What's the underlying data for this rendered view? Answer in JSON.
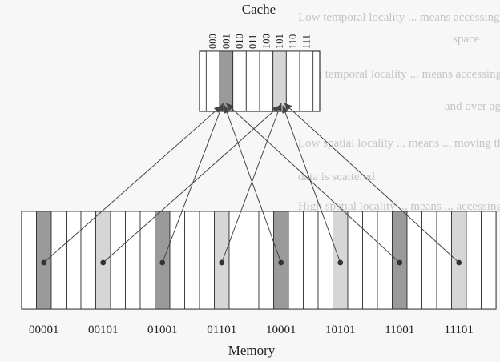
{
  "cache": {
    "title": "Cache",
    "indices": [
      "000",
      "001",
      "010",
      "011",
      "100",
      "101",
      "110",
      "111"
    ],
    "line_shades": [
      "white",
      "dark",
      "white",
      "white",
      "white",
      "light",
      "white",
      "white"
    ]
  },
  "memory": {
    "title": "Memory",
    "addresses": [
      "00001",
      "00101",
      "01001",
      "01101",
      "10001",
      "10101",
      "11001",
      "11101"
    ],
    "block_shades": [
      "dark",
      "light",
      "dark",
      "light",
      "dark",
      "light",
      "dark",
      "light"
    ],
    "maps_to_cache_index": [
      1,
      5,
      1,
      5,
      1,
      5,
      1,
      5
    ]
  },
  "background_text": [
    "Low temporal locality ... means accessing variables ... array",
    "space",
    "High temporal locality ... means accessing variables ... over",
    "and over again",
    "Low spatial locality ... means ... moving through array",
    "data is scattered",
    "High spatial locality ... means ... accessing ... the same"
  ],
  "colors": {
    "dark_cell": "#9a9a9a",
    "light_cell": "#d6d6d6",
    "white_cell": "#ffffff",
    "line": "#333333",
    "arrow": "#444444"
  }
}
